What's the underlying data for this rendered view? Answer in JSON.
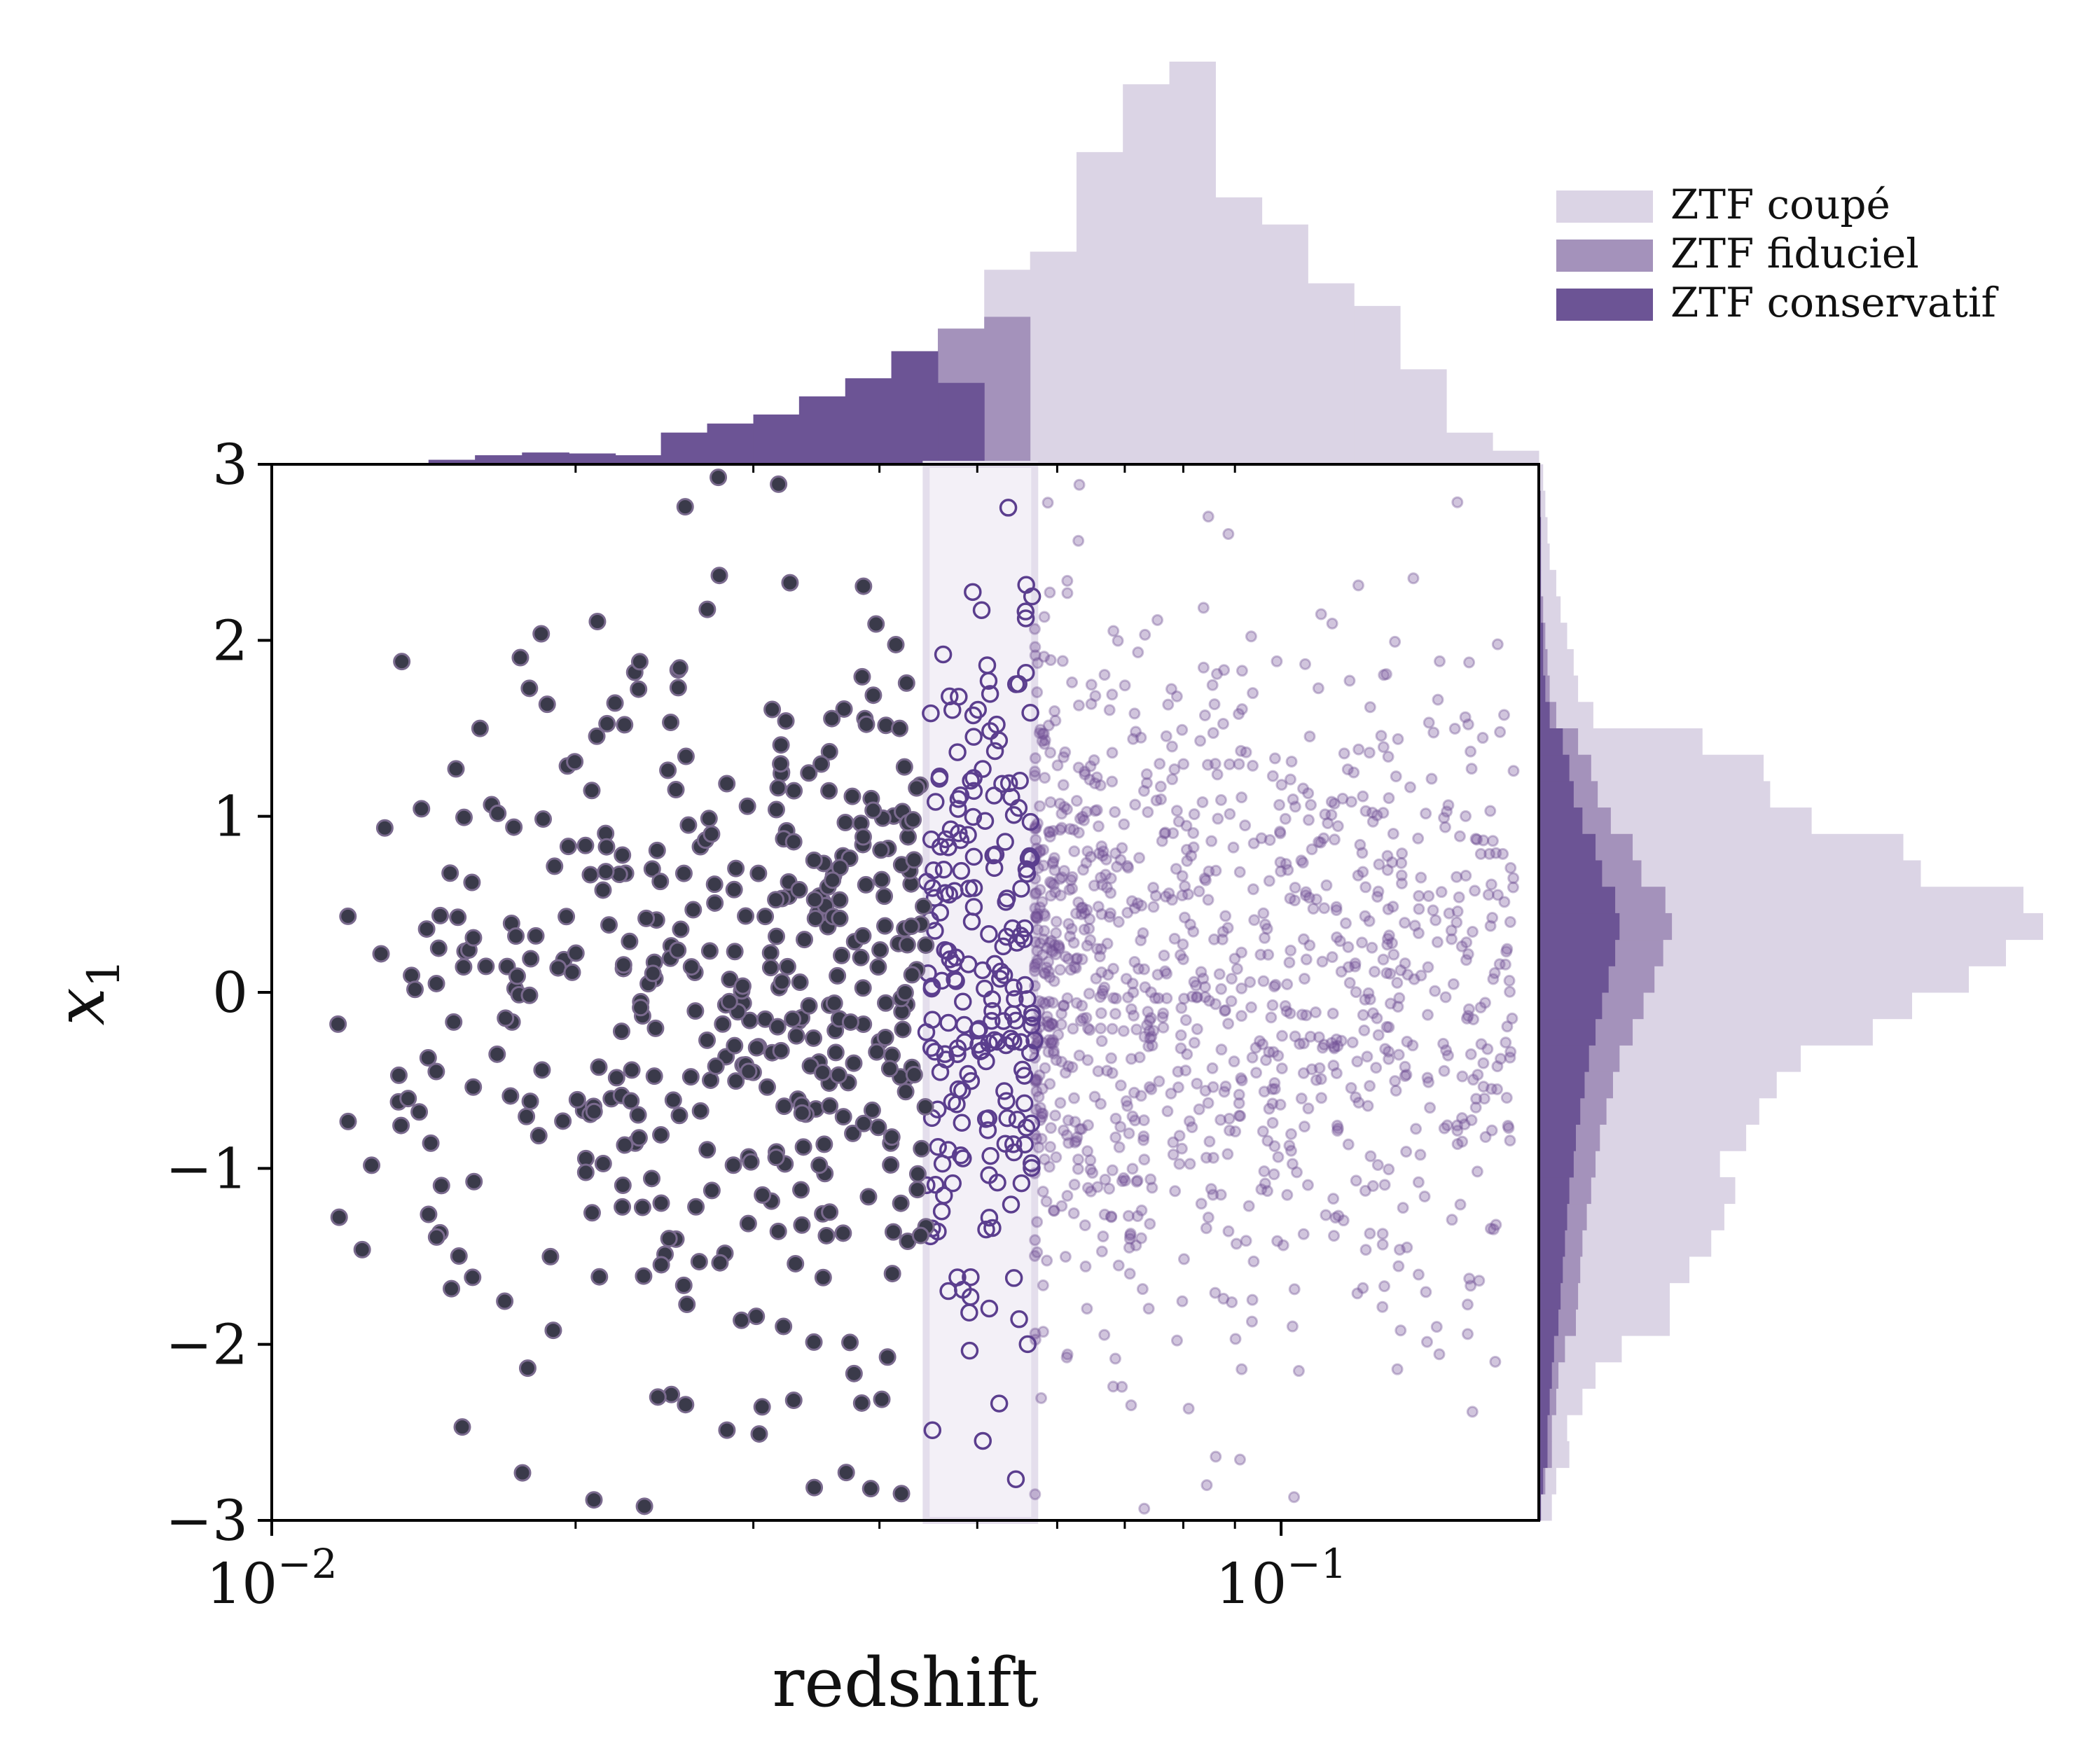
{
  "chart_data": {
    "type": "scatter",
    "title": "",
    "xlabel": "redshift",
    "ylabel": "x_1",
    "xscale": "log",
    "xlim": [
      0.01,
      0.18
    ],
    "ylim": [
      -3,
      3
    ],
    "x_ticks": [
      {
        "value": 0.01,
        "label": "10^{-2}"
      },
      {
        "value": 0.1,
        "label": "10^{-1}"
      }
    ],
    "y_ticks": [
      {
        "value": 3,
        "label": "3"
      },
      {
        "value": 2,
        "label": "2"
      },
      {
        "value": 1,
        "label": "1"
      },
      {
        "value": 0,
        "label": "0"
      },
      {
        "value": -1,
        "label": "−1"
      },
      {
        "value": -2,
        "label": "−2"
      },
      {
        "value": -3,
        "label": "−3"
      }
    ],
    "x_minor_ticks": [
      0.02,
      0.03,
      0.04,
      0.05,
      0.06,
      0.07,
      0.08,
      0.09
    ],
    "grid": false,
    "legend_position": "top-right",
    "colors": {
      "coupe": "#dbd4e5",
      "fiduciel": "#a492bb",
      "conservatif": "#6c5495",
      "point_dark": "#3a3a4a",
      "point_edge": "#5b3e8e",
      "band": "#f3f0f7"
    },
    "highlight_band": {
      "x_min": 0.0445,
      "x_max": 0.057
    },
    "legend": [
      "ZTF coupé",
      "ZTF fiduciel",
      "ZTF conservatif"
    ],
    "samples": [
      {
        "legend_index": 2,
        "z_min": 0.011,
        "z_max": 0.0445,
        "n": 440,
        "x1_mean": -0.1,
        "x1_sd": 1.1
      },
      {
        "legend_index": 1,
        "z_min": 0.0445,
        "z_max": 0.057,
        "n": 215,
        "x1_mean": 0.0,
        "x1_sd": 1.05
      },
      {
        "legend_index": 0,
        "z_min": 0.057,
        "z_max": 0.17,
        "n": 1100,
        "x1_mean": 0.05,
        "x1_sd": 0.95
      }
    ],
    "top_histogram": {
      "bin_edges": [
        0.0129,
        0.0143,
        0.0159,
        0.0177,
        0.0197,
        0.0219,
        0.0243,
        0.027,
        0.03,
        0.0333,
        0.037,
        0.0411,
        0.0457,
        0.0508,
        0.0564,
        0.0627,
        0.0697,
        0.0775,
        0.0861,
        0.0957,
        0.1063,
        0.1181,
        0.1312,
        0.1458,
        0.162,
        0.18
      ],
      "counts": [
        1,
        5,
        10,
        13,
        12,
        10,
        35,
        45,
        55,
        75,
        95,
        125,
        145,
        215,
        235,
        345,
        420,
        445,
        295,
        265,
        200,
        175,
        105,
        35,
        15
      ],
      "counts_fiduciel": [
        1,
        5,
        10,
        13,
        12,
        10,
        35,
        45,
        55,
        75,
        95,
        125,
        150,
        163,
        0,
        0,
        0,
        0,
        0,
        0,
        0,
        0,
        0,
        0,
        0
      ],
      "counts_conservatif": [
        1,
        5,
        10,
        13,
        12,
        10,
        35,
        45,
        55,
        75,
        95,
        125,
        90,
        0,
        0,
        0,
        0,
        0,
        0,
        0,
        0,
        0,
        0,
        0,
        0
      ]
    },
    "right_histogram": {
      "bin_edges": [
        -3.0,
        -2.85,
        -2.7,
        -2.55,
        -2.4,
        -2.25,
        -2.1,
        -1.95,
        -1.8,
        -1.65,
        -1.5,
        -1.35,
        -1.2,
        -1.05,
        -0.9,
        -0.75,
        -0.6,
        -0.45,
        -0.3,
        -0.15,
        0.0,
        0.15,
        0.3,
        0.45,
        0.6,
        0.75,
        0.9,
        1.05,
        1.2,
        1.35,
        1.5,
        1.65,
        1.8,
        1.95,
        2.1,
        2.25,
        2.4,
        2.55,
        2.7,
        2.85,
        3.0
      ],
      "counts": [
        6,
        8,
        14,
        13,
        20,
        26,
        38,
        60,
        60,
        69,
        79,
        85,
        90,
        83,
        95,
        101,
        109,
        120,
        153,
        171,
        197,
        214,
        231,
        222,
        175,
        167,
        125,
        106,
        103,
        75,
        25,
        18,
        16,
        13,
        10,
        8,
        5,
        4,
        3,
        2
      ],
      "counts_fiduciel": [
        1,
        3,
        6,
        6,
        8,
        9,
        12,
        17,
        18,
        19,
        20,
        22,
        24,
        26,
        28,
        31,
        34,
        37,
        43,
        48,
        53,
        57,
        61,
        58,
        47,
        43,
        33,
        27,
        24,
        18,
        8,
        5,
        4,
        3,
        2,
        1,
        1,
        1,
        1,
        0
      ],
      "counts_conservatif": [
        1,
        2,
        4,
        4,
        5,
        6,
        7,
        9,
        10,
        11,
        12,
        13,
        14,
        16,
        17,
        19,
        21,
        23,
        26,
        29,
        32,
        35,
        37,
        35,
        29,
        26,
        20,
        16,
        14,
        11,
        5,
        3,
        2,
        2,
        1,
        1,
        1,
        1,
        0,
        0
      ]
    }
  }
}
